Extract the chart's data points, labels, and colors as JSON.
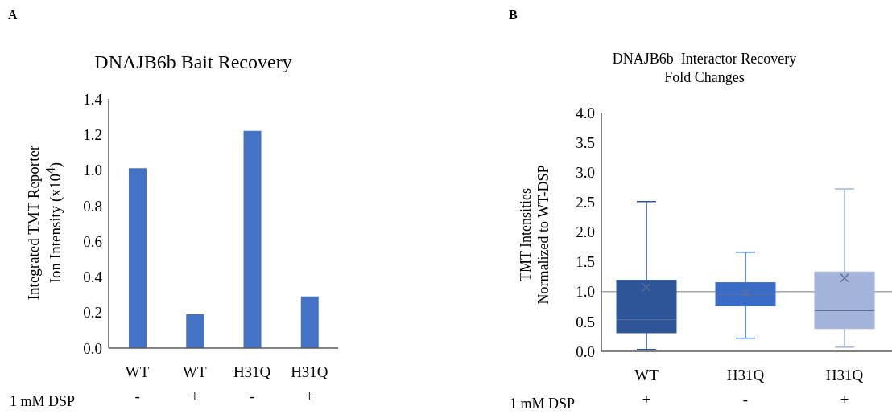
{
  "chart_data": [
    {
      "type": "bar",
      "title": "DNAJB6b Bait Recovery",
      "ylabel": "Integrated TMT Reporter\nIon Intensity (x10$^{4}$)",
      "categories": [
        "WT",
        "WT",
        "H31Q",
        "H31Q"
      ],
      "values": [
        1.01,
        0.19,
        1.22,
        0.29
      ],
      "color": "#4472c4",
      "ylim": [
        0,
        1.4
      ],
      "yticks": [
        {
          "value": 0,
          "label": "0.0"
        },
        {
          "value": 0.2,
          "label": "0.2"
        },
        {
          "value": 0.4,
          "label": "0.4"
        },
        {
          "value": 0.6,
          "label": "0.6"
        },
        {
          "value": 0.8,
          "label": "0.8"
        },
        {
          "value": 1,
          "label": "1.0"
        },
        {
          "value": 1.2,
          "label": "1.2"
        },
        {
          "value": 1.4,
          "label": "1.4"
        }
      ],
      "grid": false,
      "legend": false,
      "annotations": [
        "A",
        "1 mM DSP",
        "-",
        "+",
        "-",
        "+"
      ]
    },
    {
      "type": "box",
      "title": "DNAJB6b  Interactor Recovery\nFold Changes",
      "ylabel": "TMT Intensities\nNormalized to WT-DSP",
      "categories": [
        "WT",
        "H31Q",
        "H31Q"
      ],
      "boxes": [
        {
          "low": 0.03,
          "q1": 0.31,
          "median": 0.53,
          "q3": 1.19,
          "high": 2.51,
          "mean": 1.07
        },
        {
          "low": 0.22,
          "q1": 0.76,
          "median": 0.95,
          "q3": 1.15,
          "high": 1.66,
          "mean": 0.98
        },
        {
          "low": 0.07,
          "q1": 0.38,
          "median": 0.68,
          "q3": 1.33,
          "high": 2.72,
          "mean": 1.23
        }
      ],
      "colors": [
        "#2e5597",
        "#3a6cc7",
        "#a3b3d9"
      ],
      "ylim": [
        0,
        4
      ],
      "yticks": [
        {
          "value": 0,
          "label": "0.0"
        },
        {
          "value": 0.5,
          "label": "0.5"
        },
        {
          "value": 1,
          "label": "1.0"
        },
        {
          "value": 1.5,
          "label": "1.5"
        },
        {
          "value": 2,
          "label": "2.0"
        },
        {
          "value": 2.5,
          "label": "2.5"
        },
        {
          "value": 3,
          "label": "3.0"
        },
        {
          "value": 3.5,
          "label": "3.5"
        },
        {
          "value": 4,
          "label": "4.0"
        }
      ],
      "ref_lines": [
        {
          "axis": "y",
          "value": 1,
          "color": "#a6a6a6"
        }
      ],
      "grid": false,
      "legend": false,
      "marker": "cross",
      "annotations": [
        "B",
        "1 mM DSP",
        "+",
        "-",
        "+"
      ]
    }
  ]
}
